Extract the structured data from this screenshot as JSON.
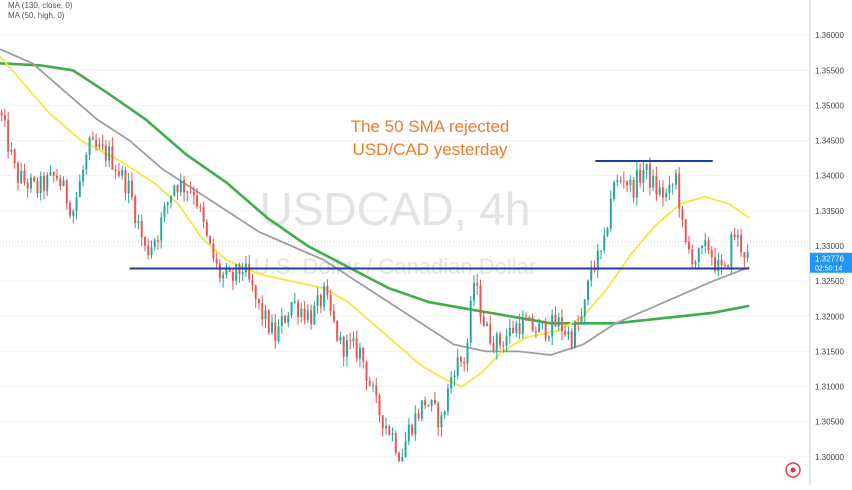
{
  "chart_data": {
    "type": "candlestick",
    "symbol": "USDCAD",
    "interval": "4h",
    "watermark_title": "USDCAD, 4h",
    "watermark_subtitle": "U.S. Dollar / Canadian Dollar",
    "indicators": [
      {
        "label": "MA (130, close, 0)",
        "color": "#9e9e9e"
      },
      {
        "label": "MA (50, high, 0)",
        "color": "#f5e642"
      }
    ],
    "annotation": {
      "lines": [
        "The 50 SMA rejected",
        "USD/CAD yesterday"
      ],
      "color": "#f07a2a"
    },
    "ylim": [
      1.296,
      1.365
    ],
    "y_ticks": [
      {
        "value": 1.36,
        "label": "1.36000"
      },
      {
        "value": 1.355,
        "label": "1.35500"
      },
      {
        "value": 1.35,
        "label": "1.35000"
      },
      {
        "value": 1.345,
        "label": "1.34500"
      },
      {
        "value": 1.34,
        "label": "1.34000"
      },
      {
        "value": 1.335,
        "label": "1.33500"
      },
      {
        "value": 1.33,
        "label": "1.33000"
      },
      {
        "value": 1.325,
        "label": "1.32500"
      },
      {
        "value": 1.32,
        "label": "1.32000"
      },
      {
        "value": 1.315,
        "label": "1.31500"
      },
      {
        "value": 1.31,
        "label": "1.31000"
      },
      {
        "value": 1.305,
        "label": "1.30500"
      },
      {
        "value": 1.3,
        "label": "1.30000"
      }
    ],
    "price_label": {
      "value": 1.32776,
      "label": "1.32776",
      "countdown": "02:50:14",
      "color": "#2196f3"
    },
    "current_price_line": 1.3306,
    "horizontal_lines": [
      {
        "name": "support",
        "value": 1.3268,
        "x_start": 0.16,
        "x_end": 0.925,
        "color": "#1f3f9f"
      },
      {
        "name": "resistance",
        "value": 1.3421,
        "x_start": 0.735,
        "x_end": 0.88,
        "color": "#1f3f9f"
      }
    ],
    "candle_colors": {
      "up": "#26a69a",
      "down": "#ef5350"
    },
    "candles": {
      "anchors": [
        [
          0.0,
          1.349
        ],
        [
          0.02,
          1.34
        ],
        [
          0.045,
          1.338
        ],
        [
          0.07,
          1.34
        ],
        [
          0.09,
          1.335
        ],
        [
          0.11,
          1.344
        ],
        [
          0.135,
          1.343
        ],
        [
          0.16,
          1.338
        ],
        [
          0.18,
          1.329
        ],
        [
          0.195,
          1.332
        ],
        [
          0.215,
          1.339
        ],
        [
          0.24,
          1.338
        ],
        [
          0.255,
          1.331
        ],
        [
          0.27,
          1.326
        ],
        [
          0.285,
          1.325
        ],
        [
          0.3,
          1.327
        ],
        [
          0.32,
          1.321
        ],
        [
          0.34,
          1.317
        ],
        [
          0.36,
          1.322
        ],
        [
          0.385,
          1.32
        ],
        [
          0.4,
          1.323
        ],
        [
          0.42,
          1.316
        ],
        [
          0.445,
          1.315
        ],
        [
          0.465,
          1.307
        ],
        [
          0.485,
          1.303
        ],
        [
          0.495,
          1.3
        ],
        [
          0.505,
          1.304
        ],
        [
          0.525,
          1.308
        ],
        [
          0.545,
          1.305
        ],
        [
          0.56,
          1.313
        ],
        [
          0.575,
          1.314
        ],
        [
          0.585,
          1.325
        ],
        [
          0.6,
          1.318
        ],
        [
          0.615,
          1.316
        ],
        [
          0.64,
          1.319
        ],
        [
          0.665,
          1.318
        ],
        [
          0.69,
          1.319
        ],
        [
          0.705,
          1.317
        ],
        [
          0.72,
          1.32
        ],
        [
          0.73,
          1.327
        ],
        [
          0.745,
          1.329
        ],
        [
          0.755,
          1.338
        ],
        [
          0.77,
          1.34
        ],
        [
          0.78,
          1.338
        ],
        [
          0.795,
          1.341
        ],
        [
          0.81,
          1.338
        ],
        [
          0.825,
          1.337
        ],
        [
          0.835,
          1.34
        ],
        [
          0.845,
          1.33
        ],
        [
          0.86,
          1.328
        ],
        [
          0.875,
          1.33
        ],
        [
          0.885,
          1.327
        ],
        [
          0.895,
          1.326
        ],
        [
          0.905,
          1.332
        ],
        [
          0.915,
          1.33
        ],
        [
          0.925,
          1.328
        ]
      ],
      "count": 230
    },
    "ma_lines": [
      {
        "name": "MA 200",
        "color": "#3fae49",
        "points": [
          [
            0.0,
            1.356
          ],
          [
            0.05,
            1.3557
          ],
          [
            0.09,
            1.355
          ],
          [
            0.13,
            1.352
          ],
          [
            0.18,
            1.348
          ],
          [
            0.23,
            1.343
          ],
          [
            0.28,
            1.339
          ],
          [
            0.33,
            1.334
          ],
          [
            0.38,
            1.33
          ],
          [
            0.43,
            1.327
          ],
          [
            0.48,
            1.324
          ],
          [
            0.53,
            1.322
          ],
          [
            0.58,
            1.321
          ],
          [
            0.63,
            1.32
          ],
          [
            0.68,
            1.319
          ],
          [
            0.72,
            1.319
          ],
          [
            0.76,
            1.319
          ],
          [
            0.8,
            1.3195
          ],
          [
            0.84,
            1.32
          ],
          [
            0.88,
            1.3205
          ],
          [
            0.925,
            1.3215
          ]
        ]
      },
      {
        "name": "MA (130, close, 0)",
        "color": "#9e9e9e",
        "points": [
          [
            0.0,
            1.358
          ],
          [
            0.04,
            1.356
          ],
          [
            0.08,
            1.352
          ],
          [
            0.12,
            1.348
          ],
          [
            0.16,
            1.345
          ],
          [
            0.2,
            1.341
          ],
          [
            0.24,
            1.338
          ],
          [
            0.28,
            1.335
          ],
          [
            0.32,
            1.332
          ],
          [
            0.36,
            1.33
          ],
          [
            0.4,
            1.328
          ],
          [
            0.44,
            1.325
          ],
          [
            0.48,
            1.322
          ],
          [
            0.52,
            1.319
          ],
          [
            0.56,
            1.316
          ],
          [
            0.6,
            1.315
          ],
          [
            0.64,
            1.315
          ],
          [
            0.68,
            1.3145
          ],
          [
            0.72,
            1.316
          ],
          [
            0.76,
            1.319
          ],
          [
            0.8,
            1.321
          ],
          [
            0.84,
            1.323
          ],
          [
            0.88,
            1.325
          ],
          [
            0.925,
            1.327
          ]
        ]
      },
      {
        "name": "MA (50, high, 0)",
        "color": "#f5e642",
        "points": [
          [
            0.0,
            1.357
          ],
          [
            0.03,
            1.353
          ],
          [
            0.06,
            1.349
          ],
          [
            0.1,
            1.345
          ],
          [
            0.15,
            1.342
          ],
          [
            0.19,
            1.339
          ],
          [
            0.22,
            1.336
          ],
          [
            0.25,
            1.331
          ],
          [
            0.28,
            1.328
          ],
          [
            0.32,
            1.326
          ],
          [
            0.36,
            1.325
          ],
          [
            0.4,
            1.324
          ],
          [
            0.43,
            1.322
          ],
          [
            0.46,
            1.319
          ],
          [
            0.49,
            1.316
          ],
          [
            0.52,
            1.313
          ],
          [
            0.55,
            1.311
          ],
          [
            0.57,
            1.31
          ],
          [
            0.595,
            1.312
          ],
          [
            0.62,
            1.315
          ],
          [
            0.65,
            1.317
          ],
          [
            0.69,
            1.318
          ],
          [
            0.72,
            1.32
          ],
          [
            0.75,
            1.324
          ],
          [
            0.78,
            1.329
          ],
          [
            0.81,
            1.333
          ],
          [
            0.84,
            1.336
          ],
          [
            0.87,
            1.337
          ],
          [
            0.9,
            1.336
          ],
          [
            0.925,
            1.334
          ]
        ]
      }
    ]
  }
}
